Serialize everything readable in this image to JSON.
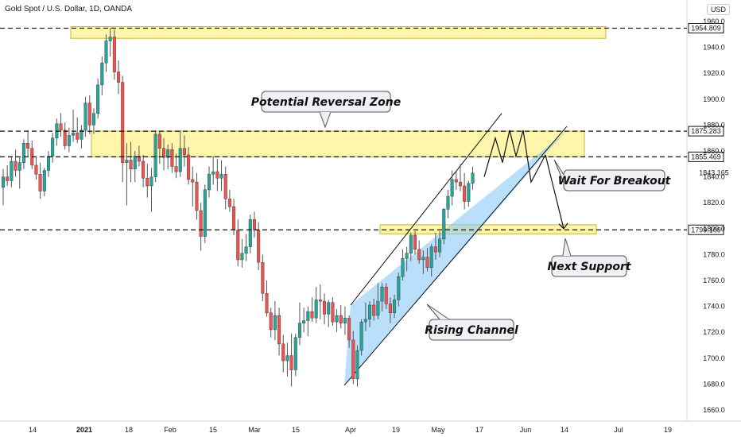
{
  "header": {
    "symbol_line": "Gold Spot / U.S. Dollar, 1D, OANDA",
    "currency": "USD"
  },
  "chart_data": {
    "type": "candlestick",
    "ylim": [
      1655,
      1960
    ],
    "y_ticks": [
      1660.0,
      1680.0,
      1700.0,
      1720.0,
      1740.0,
      1760.0,
      1780.0,
      1800.0,
      1820.0,
      1840.0,
      1860.0,
      1880.0,
      1900.0,
      1920.0,
      1940.0,
      1960.0
    ],
    "x_tick_labels": [
      "14",
      "2021",
      "18",
      "Feb",
      "15",
      "Mar",
      "15",
      "Apr",
      "19",
      "May",
      "17",
      "Jun",
      "14",
      "Jul",
      "19"
    ],
    "colors": {
      "up": "#26a69a",
      "down": "#ef5350",
      "zone_fill": "#fff59d",
      "zone_border": "#c8b43a",
      "channel_fill": "#7fc4f5",
      "level_label_bg": "#ffffff"
    },
    "candles": [
      {
        "o": 1832,
        "h": 1846,
        "l": 1818,
        "c": 1840
      },
      {
        "o": 1840,
        "h": 1849,
        "l": 1833,
        "c": 1837
      },
      {
        "o": 1837,
        "h": 1856,
        "l": 1832,
        "c": 1852
      },
      {
        "o": 1852,
        "h": 1861,
        "l": 1840,
        "c": 1845
      },
      {
        "o": 1845,
        "h": 1855,
        "l": 1831,
        "c": 1851
      },
      {
        "o": 1851,
        "h": 1869,
        "l": 1846,
        "c": 1866
      },
      {
        "o": 1866,
        "h": 1876,
        "l": 1856,
        "c": 1862
      },
      {
        "o": 1862,
        "h": 1868,
        "l": 1846,
        "c": 1849
      },
      {
        "o": 1849,
        "h": 1855,
        "l": 1838,
        "c": 1842
      },
      {
        "o": 1842,
        "h": 1851,
        "l": 1823,
        "c": 1829
      },
      {
        "o": 1829,
        "h": 1847,
        "l": 1825,
        "c": 1845
      },
      {
        "o": 1845,
        "h": 1860,
        "l": 1840,
        "c": 1856
      },
      {
        "o": 1856,
        "h": 1874,
        "l": 1851,
        "c": 1870
      },
      {
        "o": 1870,
        "h": 1885,
        "l": 1864,
        "c": 1881
      },
      {
        "o": 1881,
        "h": 1889,
        "l": 1871,
        "c": 1876
      },
      {
        "o": 1876,
        "h": 1882,
        "l": 1861,
        "c": 1864
      },
      {
        "o": 1864,
        "h": 1878,
        "l": 1859,
        "c": 1872
      },
      {
        "o": 1872,
        "h": 1892,
        "l": 1867,
        "c": 1874
      },
      {
        "o": 1874,
        "h": 1886,
        "l": 1866,
        "c": 1869
      },
      {
        "o": 1869,
        "h": 1880,
        "l": 1862,
        "c": 1876
      },
      {
        "o": 1876,
        "h": 1902,
        "l": 1871,
        "c": 1897
      },
      {
        "o": 1897,
        "h": 1903,
        "l": 1873,
        "c": 1880
      },
      {
        "o": 1880,
        "h": 1893,
        "l": 1873,
        "c": 1889
      },
      {
        "o": 1889,
        "h": 1916,
        "l": 1885,
        "c": 1911
      },
      {
        "o": 1911,
        "h": 1933,
        "l": 1903,
        "c": 1928
      },
      {
        "o": 1928,
        "h": 1950,
        "l": 1921,
        "c": 1945
      },
      {
        "o": 1945,
        "h": 1955,
        "l": 1933,
        "c": 1948
      },
      {
        "o": 1948,
        "h": 1954,
        "l": 1915,
        "c": 1921
      },
      {
        "o": 1921,
        "h": 1930,
        "l": 1904,
        "c": 1913
      },
      {
        "o": 1913,
        "h": 1918,
        "l": 1836,
        "c": 1851
      },
      {
        "o": 1851,
        "h": 1866,
        "l": 1818,
        "c": 1853
      },
      {
        "o": 1853,
        "h": 1867,
        "l": 1836,
        "c": 1846
      },
      {
        "o": 1846,
        "h": 1860,
        "l": 1836,
        "c": 1856
      },
      {
        "o": 1856,
        "h": 1864,
        "l": 1848,
        "c": 1852
      },
      {
        "o": 1852,
        "h": 1857,
        "l": 1832,
        "c": 1839
      },
      {
        "o": 1839,
        "h": 1850,
        "l": 1824,
        "c": 1833
      },
      {
        "o": 1833,
        "h": 1847,
        "l": 1813,
        "c": 1840
      },
      {
        "o": 1840,
        "h": 1876,
        "l": 1836,
        "c": 1873
      },
      {
        "o": 1873,
        "h": 1875,
        "l": 1850,
        "c": 1862
      },
      {
        "o": 1862,
        "h": 1870,
        "l": 1845,
        "c": 1855
      },
      {
        "o": 1855,
        "h": 1865,
        "l": 1846,
        "c": 1861
      },
      {
        "o": 1861,
        "h": 1866,
        "l": 1843,
        "c": 1848
      },
      {
        "o": 1848,
        "h": 1858,
        "l": 1839,
        "c": 1844
      },
      {
        "o": 1844,
        "h": 1876,
        "l": 1840,
        "c": 1862
      },
      {
        "o": 1862,
        "h": 1872,
        "l": 1848,
        "c": 1857
      },
      {
        "o": 1857,
        "h": 1863,
        "l": 1834,
        "c": 1838
      },
      {
        "o": 1838,
        "h": 1848,
        "l": 1817,
        "c": 1836
      },
      {
        "o": 1836,
        "h": 1843,
        "l": 1807,
        "c": 1814
      },
      {
        "o": 1814,
        "h": 1820,
        "l": 1783,
        "c": 1794
      },
      {
        "o": 1794,
        "h": 1834,
        "l": 1789,
        "c": 1830
      },
      {
        "o": 1830,
        "h": 1848,
        "l": 1824,
        "c": 1842
      },
      {
        "o": 1842,
        "h": 1856,
        "l": 1834,
        "c": 1844
      },
      {
        "o": 1844,
        "h": 1854,
        "l": 1829,
        "c": 1839
      },
      {
        "o": 1839,
        "h": 1853,
        "l": 1829,
        "c": 1842
      },
      {
        "o": 1842,
        "h": 1848,
        "l": 1815,
        "c": 1823
      },
      {
        "o": 1823,
        "h": 1830,
        "l": 1813,
        "c": 1817
      },
      {
        "o": 1817,
        "h": 1823,
        "l": 1795,
        "c": 1799
      },
      {
        "o": 1799,
        "h": 1807,
        "l": 1771,
        "c": 1776
      },
      {
        "o": 1776,
        "h": 1792,
        "l": 1770,
        "c": 1781
      },
      {
        "o": 1781,
        "h": 1796,
        "l": 1775,
        "c": 1786
      },
      {
        "o": 1786,
        "h": 1811,
        "l": 1781,
        "c": 1807
      },
      {
        "o": 1807,
        "h": 1813,
        "l": 1793,
        "c": 1799
      },
      {
        "o": 1799,
        "h": 1805,
        "l": 1768,
        "c": 1774
      },
      {
        "o": 1774,
        "h": 1780,
        "l": 1744,
        "c": 1750
      },
      {
        "o": 1750,
        "h": 1760,
        "l": 1732,
        "c": 1735
      },
      {
        "o": 1735,
        "h": 1739,
        "l": 1716,
        "c": 1722
      },
      {
        "o": 1722,
        "h": 1744,
        "l": 1714,
        "c": 1733
      },
      {
        "o": 1733,
        "h": 1739,
        "l": 1702,
        "c": 1711
      },
      {
        "o": 1711,
        "h": 1718,
        "l": 1689,
        "c": 1698
      },
      {
        "o": 1698,
        "h": 1712,
        "l": 1686,
        "c": 1702
      },
      {
        "o": 1702,
        "h": 1719,
        "l": 1678,
        "c": 1691
      },
      {
        "o": 1691,
        "h": 1719,
        "l": 1686,
        "c": 1716
      },
      {
        "o": 1716,
        "h": 1743,
        "l": 1710,
        "c": 1727
      },
      {
        "o": 1727,
        "h": 1739,
        "l": 1720,
        "c": 1729
      },
      {
        "o": 1729,
        "h": 1740,
        "l": 1717,
        "c": 1736
      },
      {
        "o": 1736,
        "h": 1747,
        "l": 1728,
        "c": 1731
      },
      {
        "o": 1731,
        "h": 1755,
        "l": 1727,
        "c": 1745
      },
      {
        "o": 1745,
        "h": 1757,
        "l": 1730,
        "c": 1744
      },
      {
        "o": 1744,
        "h": 1750,
        "l": 1726,
        "c": 1734
      },
      {
        "o": 1734,
        "h": 1745,
        "l": 1724,
        "c": 1743
      },
      {
        "o": 1743,
        "h": 1747,
        "l": 1725,
        "c": 1728
      },
      {
        "o": 1728,
        "h": 1738,
        "l": 1720,
        "c": 1733
      },
      {
        "o": 1733,
        "h": 1741,
        "l": 1723,
        "c": 1727
      },
      {
        "o": 1727,
        "h": 1740,
        "l": 1718,
        "c": 1731
      },
      {
        "o": 1731,
        "h": 1733,
        "l": 1708,
        "c": 1714
      },
      {
        "o": 1714,
        "h": 1721,
        "l": 1680,
        "c": 1684
      },
      {
        "o": 1684,
        "h": 1710,
        "l": 1678,
        "c": 1706
      },
      {
        "o": 1706,
        "h": 1730,
        "l": 1702,
        "c": 1728
      },
      {
        "o": 1728,
        "h": 1743,
        "l": 1721,
        "c": 1730
      },
      {
        "o": 1730,
        "h": 1744,
        "l": 1724,
        "c": 1741
      },
      {
        "o": 1741,
        "h": 1746,
        "l": 1729,
        "c": 1733
      },
      {
        "o": 1733,
        "h": 1758,
        "l": 1730,
        "c": 1744
      },
      {
        "o": 1744,
        "h": 1758,
        "l": 1736,
        "c": 1755
      },
      {
        "o": 1755,
        "h": 1758,
        "l": 1738,
        "c": 1742
      },
      {
        "o": 1742,
        "h": 1747,
        "l": 1727,
        "c": 1735
      },
      {
        "o": 1735,
        "h": 1749,
        "l": 1731,
        "c": 1745
      },
      {
        "o": 1745,
        "h": 1766,
        "l": 1740,
        "c": 1763
      },
      {
        "o": 1763,
        "h": 1784,
        "l": 1760,
        "c": 1777
      },
      {
        "o": 1777,
        "h": 1786,
        "l": 1767,
        "c": 1781
      },
      {
        "o": 1781,
        "h": 1797,
        "l": 1775,
        "c": 1795
      },
      {
        "o": 1795,
        "h": 1798,
        "l": 1780,
        "c": 1784
      },
      {
        "o": 1784,
        "h": 1791,
        "l": 1773,
        "c": 1776
      },
      {
        "o": 1776,
        "h": 1783,
        "l": 1765,
        "c": 1778
      },
      {
        "o": 1778,
        "h": 1785,
        "l": 1767,
        "c": 1770
      },
      {
        "o": 1770,
        "h": 1788,
        "l": 1763,
        "c": 1786
      },
      {
        "o": 1786,
        "h": 1797,
        "l": 1776,
        "c": 1782
      },
      {
        "o": 1782,
        "h": 1798,
        "l": 1778,
        "c": 1792
      },
      {
        "o": 1792,
        "h": 1816,
        "l": 1788,
        "c": 1815
      },
      {
        "o": 1815,
        "h": 1830,
        "l": 1808,
        "c": 1825
      },
      {
        "o": 1825,
        "h": 1845,
        "l": 1818,
        "c": 1838
      },
      {
        "o": 1838,
        "h": 1845,
        "l": 1830,
        "c": 1836
      },
      {
        "o": 1836,
        "h": 1850,
        "l": 1829,
        "c": 1833
      },
      {
        "o": 1833,
        "h": 1843,
        "l": 1815,
        "c": 1821
      },
      {
        "o": 1821,
        "h": 1837,
        "l": 1817,
        "c": 1835
      },
      {
        "o": 1835,
        "h": 1848,
        "l": 1830,
        "c": 1843
      }
    ],
    "zones": [
      {
        "y_top": 1956.0,
        "y_bottom": 1947.0
      },
      {
        "y_top": 1875.3,
        "y_bottom": 1855.5
      },
      {
        "y_top": 1803.0,
        "y_bottom": 1796.0
      }
    ],
    "levels": [
      {
        "y": 1954.809,
        "label": "1954.809"
      },
      {
        "y": 1875.283,
        "label": "1875.283"
      },
      {
        "y": 1855.469,
        "label": "1855.469"
      },
      {
        "y": 1799.109,
        "label": "1799.109"
      }
    ],
    "current_price": {
      "y": 1843.165,
      "label": "1843.165"
    },
    "channel": {
      "lower": [
        [
          1679,
          1855
        ]
      ],
      "upper": [
        [
          1741,
          1895
        ]
      ]
    },
    "annotations": [
      {
        "text": "Potential Reversal Zone"
      },
      {
        "text": "Wait For Breakout"
      },
      {
        "text": "Next Support"
      },
      {
        "text": "Rising Channel"
      }
    ]
  }
}
